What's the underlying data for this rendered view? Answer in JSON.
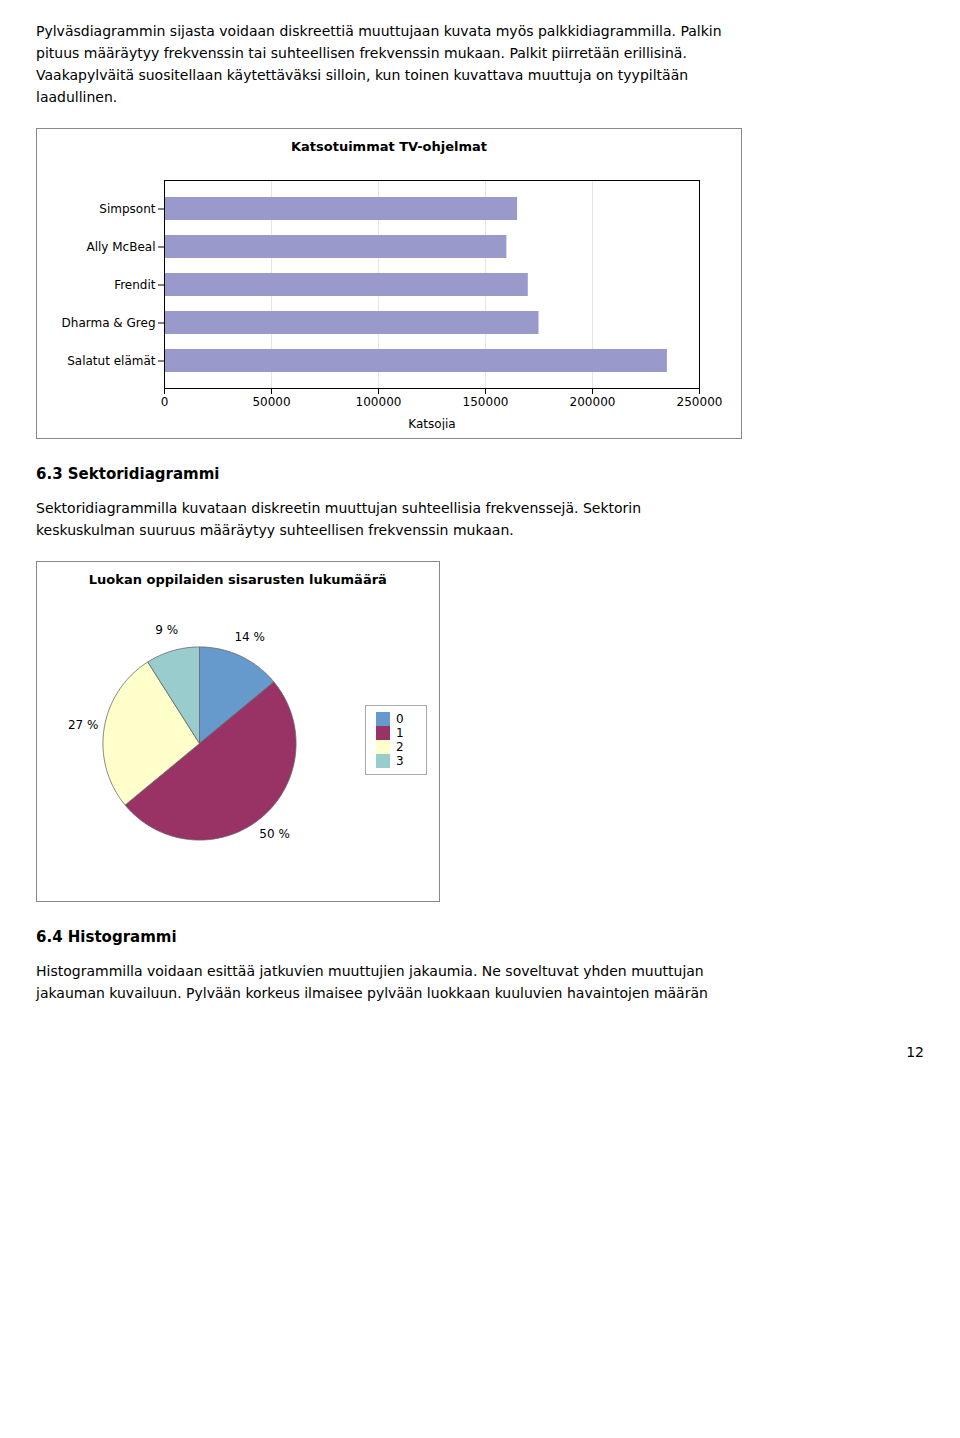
{
  "chart_data": [
    {
      "type": "bar",
      "orientation": "horizontal",
      "title": "Katsotuimmat TV-ohjelmat",
      "categories": [
        "Simpsont",
        "Ally McBeal",
        "Frendit",
        "Dharma & Greg",
        "Salatut elämät"
      ],
      "values": [
        165000,
        160000,
        170000,
        175000,
        235000
      ],
      "color": "#9999cc",
      "x_label": "Katsojia",
      "xlim": [
        0,
        250000
      ],
      "xticks": [
        0,
        50000,
        100000,
        150000,
        200000,
        250000
      ],
      "grid": true
    },
    {
      "type": "pie",
      "title": "Luokan oppilaiden sisarusten lukumäärä",
      "categories": [
        "0",
        "1",
        "2",
        "3"
      ],
      "values": [
        14,
        50,
        27,
        9
      ],
      "value_labels": [
        "14 %",
        "50 %",
        "27 %",
        "9 %"
      ],
      "colors": [
        "#6699cc",
        "#993366",
        "#ffffcc",
        "#99cccc"
      ],
      "data_labels": true,
      "legend": "right"
    }
  ],
  "annotations": [
    [
      "Pylväsdiagrammin sijasta voidaan diskreettiä muuttujaan kuvata myös palkkidiagrammilla. Palkin",
      "pituus määräytyy frekvenssin tai suhteellisen frekvenssin mukaan. Palkit piirretään erillisinä.",
      "Vaakapylväitä suositellaan käytettäväksi silloin, kun toinen kuvattava muuttuja on tyypiltään",
      "laadullinen."
    ],
    [
      "6.3 Sektoridiagrammi",
      "Sektoridiagrammilla kuvataan diskreetin muuttujan suhteellisia frekvenssejä. Sektorin",
      "keskuskulman suuruus määräytyy suhteellisen frekvenssin mukaan."
    ],
    [
      "6.4 Histogrammi",
      "Histogrammilla voidaan esittää jatkuvien muuttujien jakaumia. Ne soveltuvat yhden muuttujan",
      "jakauman kuvailuun. Pylvään korkeus ilmaisee pylvään luokkaan kuuluvien havaintojen määrän"
    ],
    [
      "12"
    ]
  ]
}
